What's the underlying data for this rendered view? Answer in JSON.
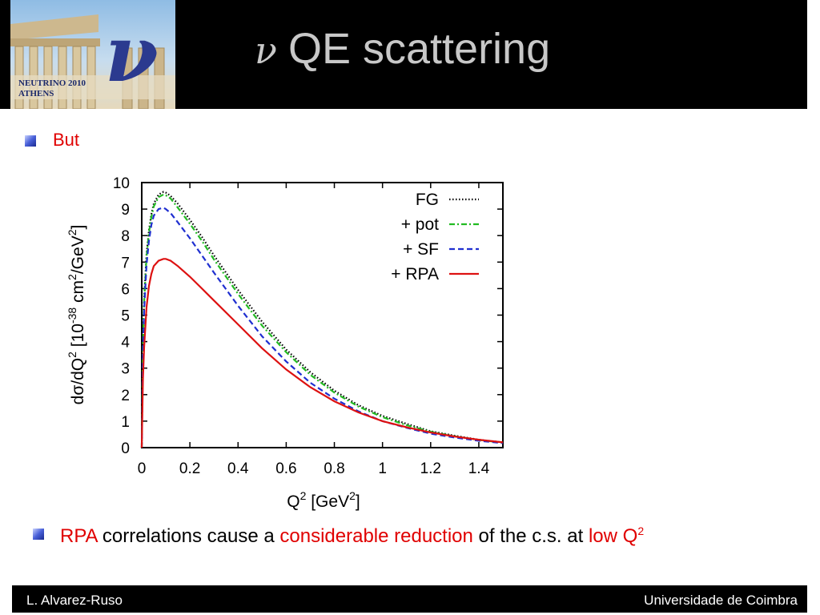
{
  "header": {
    "logo": {
      "caption_line1": "NEUTRINO  2010",
      "caption_line2": "ATHENS",
      "glyph": "ν"
    },
    "title_symbol": "ν",
    "title_text": "QE scattering"
  },
  "bullets": {
    "first_text": "But",
    "second": {
      "rpa": "RPA",
      "part1": " correlations cause a ",
      "emph": "considerable reduction",
      "part2": " of the c.s. at ",
      "low": "low Q",
      "sup": "2"
    }
  },
  "footer": {
    "left": "L. Alvarez-Ruso",
    "right": "Universidade de Coimbra"
  },
  "colors": {
    "accent_red": "#e00000",
    "header_bg": "#000000",
    "title_gray": "#c8c8c8"
  },
  "chart_data": {
    "type": "line",
    "xlim": [
      0,
      1.5
    ],
    "ylim": [
      0,
      10
    ],
    "x_ticks": [
      0,
      0.2,
      0.4,
      0.6,
      0.8,
      1,
      1.2,
      1.4
    ],
    "x_tick_labels": [
      "0",
      "0.2",
      "0.4",
      "0.6",
      "0.8",
      "1",
      "1.2",
      "1.4"
    ],
    "y_ticks": [
      0,
      1,
      2,
      3,
      4,
      5,
      6,
      7,
      8,
      9,
      10
    ],
    "y_tick_labels": [
      "0",
      "1",
      "2",
      "3",
      "4",
      "5",
      "6",
      "7",
      "8",
      "9",
      "10"
    ],
    "legend_position": "top-right",
    "grid": false,
    "series": [
      {
        "name": "FG",
        "color": "#000000",
        "dash": "dotted",
        "x": [
          0,
          0.005,
          0.01,
          0.02,
          0.03,
          0.04,
          0.05,
          0.07,
          0.09,
          0.1,
          0.12,
          0.15,
          0.2,
          0.25,
          0.3,
          0.4,
          0.5,
          0.6,
          0.7,
          0.8,
          0.9,
          1.0,
          1.1,
          1.2,
          1.3,
          1.4,
          1.5
        ],
        "y": [
          0,
          4.0,
          5.6,
          7.3,
          8.2,
          8.8,
          9.2,
          9.55,
          9.65,
          9.62,
          9.5,
          9.2,
          8.6,
          7.95,
          7.25,
          5.95,
          4.75,
          3.7,
          2.85,
          2.15,
          1.6,
          1.2,
          0.9,
          0.62,
          0.45,
          0.3,
          0.2
        ]
      },
      {
        "name": "+ pot",
        "color": "#22bb22",
        "dash": "dashdot",
        "x": [
          0,
          0.005,
          0.01,
          0.02,
          0.03,
          0.04,
          0.05,
          0.07,
          0.09,
          0.1,
          0.12,
          0.15,
          0.2,
          0.25,
          0.3,
          0.4,
          0.5,
          0.6,
          0.7,
          0.8,
          0.9,
          1.0,
          1.1,
          1.2,
          1.3,
          1.4,
          1.5
        ],
        "y": [
          0,
          3.9,
          5.5,
          7.2,
          8.1,
          8.7,
          9.1,
          9.45,
          9.55,
          9.52,
          9.4,
          9.05,
          8.45,
          7.8,
          7.1,
          5.8,
          4.6,
          3.6,
          2.75,
          2.08,
          1.55,
          1.15,
          0.85,
          0.6,
          0.43,
          0.29,
          0.19
        ]
      },
      {
        "name": "+ SF",
        "color": "#1f2fd0",
        "dash": "dashed",
        "x": [
          0,
          0.005,
          0.01,
          0.02,
          0.03,
          0.04,
          0.05,
          0.07,
          0.09,
          0.1,
          0.12,
          0.15,
          0.2,
          0.25,
          0.3,
          0.4,
          0.5,
          0.6,
          0.7,
          0.8,
          0.9,
          1.0,
          1.1,
          1.2,
          1.3,
          1.4,
          1.5
        ],
        "y": [
          0,
          3.6,
          5.2,
          6.9,
          7.8,
          8.4,
          8.75,
          9.0,
          9.05,
          9.0,
          8.85,
          8.5,
          7.9,
          7.25,
          6.6,
          5.35,
          4.2,
          3.25,
          2.45,
          1.85,
          1.37,
          1.0,
          0.75,
          0.53,
          0.38,
          0.26,
          0.17
        ]
      },
      {
        "name": "+ RPA",
        "color": "#dd1111",
        "dash": "solid",
        "x": [
          0,
          0.005,
          0.01,
          0.02,
          0.03,
          0.04,
          0.05,
          0.07,
          0.09,
          0.1,
          0.12,
          0.15,
          0.2,
          0.25,
          0.3,
          0.4,
          0.5,
          0.6,
          0.7,
          0.8,
          0.9,
          1.0,
          1.1,
          1.2,
          1.3,
          1.4,
          1.5
        ],
        "y": [
          0,
          2.6,
          3.8,
          5.3,
          6.1,
          6.55,
          6.85,
          7.05,
          7.12,
          7.12,
          7.05,
          6.85,
          6.45,
          6.0,
          5.55,
          4.65,
          3.75,
          2.95,
          2.28,
          1.75,
          1.33,
          1.0,
          0.77,
          0.57,
          0.42,
          0.3,
          0.2
        ]
      }
    ]
  }
}
